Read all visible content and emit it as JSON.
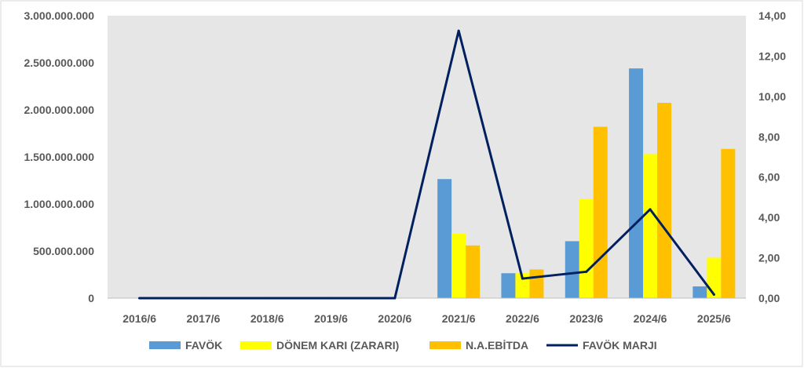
{
  "chart_data": {
    "type": "bar",
    "categories": [
      "2016/6",
      "2017/6",
      "2018/6",
      "2019/6",
      "2020/6",
      "2021/6",
      "2022/6",
      "2023/6",
      "2024/6",
      "2025/6"
    ],
    "series": [
      {
        "name": "FAVÖK",
        "kind": "bar",
        "axis": "left",
        "color": "#5B9BD5",
        "values": [
          0,
          0,
          0,
          0,
          0,
          1265000000,
          265000000,
          605000000,
          2440000000,
          125000000
        ]
      },
      {
        "name": "DÖNEM KARI (ZARARI)",
        "kind": "bar",
        "axis": "left",
        "color": "#FFFF00",
        "values": [
          0,
          0,
          0,
          0,
          0,
          685000000,
          265000000,
          1055000000,
          1530000000,
          430000000
        ]
      },
      {
        "name": "N.A.EBİTDA",
        "kind": "bar",
        "axis": "left",
        "color": "#FFC000",
        "values": [
          0,
          0,
          0,
          0,
          0,
          560000000,
          305000000,
          1820000000,
          2075000000,
          1585000000
        ]
      },
      {
        "name": "FAVÖK MARJI",
        "kind": "line",
        "axis": "right",
        "color": "#002060",
        "values": [
          0,
          0,
          0,
          0,
          0,
          13.25,
          0.97,
          1.31,
          4.4,
          0.18
        ]
      }
    ],
    "y_left": {
      "min": 0,
      "max": 3000000000,
      "ticks": [
        "0",
        "500.000.000",
        "1.000.000.000",
        "1.500.000.000",
        "2.000.000.000",
        "2.500.000.000",
        "3.000.000.000"
      ],
      "tick_values": [
        0,
        500000000,
        1000000000,
        1500000000,
        2000000000,
        2500000000,
        3000000000
      ]
    },
    "y_right": {
      "min": 0,
      "max": 14,
      "ticks": [
        "0,00",
        "2,00",
        "4,00",
        "6,00",
        "8,00",
        "10,00",
        "12,00",
        "14,00"
      ],
      "tick_values": [
        0,
        2,
        4,
        6,
        8,
        10,
        12,
        14
      ]
    },
    "grid": false,
    "legend_position": "bottom",
    "plot_background": "#E7E6E6"
  }
}
